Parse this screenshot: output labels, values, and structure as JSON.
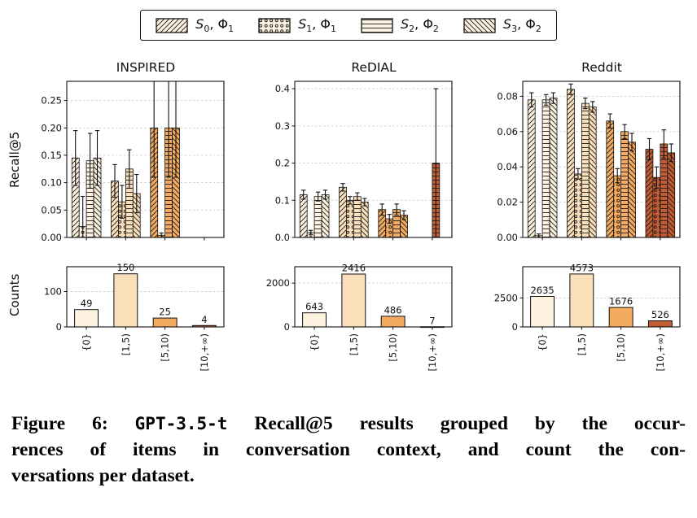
{
  "axis_labels": {
    "recall": "Recall@5",
    "counts": "Counts"
  },
  "legend_patch_color": "#fdf2e0",
  "group_colors": [
    "#fdf2e0",
    "#fbdfba",
    "#f3ab61",
    "#c25c33"
  ],
  "legend": {
    "items": [
      {
        "series": "S",
        "series_sub": "0",
        "phi": "Φ",
        "phi_sub": "1",
        "hatch": "diag"
      },
      {
        "series": "S",
        "series_sub": "1",
        "phi": "Φ",
        "phi_sub": "1",
        "hatch": "circles"
      },
      {
        "series": "S",
        "series_sub": "2",
        "phi": "Φ",
        "phi_sub": "2",
        "hatch": "horiz"
      },
      {
        "series": "S",
        "series_sub": "3",
        "phi": "Φ",
        "phi_sub": "2",
        "hatch": "back"
      }
    ]
  },
  "chart_data": [
    {
      "type": "bar",
      "title": "INSPIRED",
      "groups": [
        "{0}",
        "[1,5)",
        "[5,10)",
        "[10,+∞)"
      ],
      "recall": {
        "ylabel": "Recall@5",
        "ymax": 0.285,
        "ytick_values": [
          0,
          0.05,
          0.1,
          0.15,
          0.2,
          0.25
        ],
        "ytick_labels": [
          "0.00",
          "0.05",
          "0.10",
          "0.15",
          "0.20",
          "0.25"
        ],
        "series": [
          {
            "name": "S0,Φ1",
            "hatch": "diag",
            "values": [
              0.145,
              0.103,
              0.2,
              0
            ],
            "errors": [
              0.05,
              0.03,
              0.09,
              0
            ]
          },
          {
            "name": "S1,Φ1",
            "hatch": "circles",
            "values": [
              0.02,
              0.065,
              0.004,
              0
            ],
            "errors": [
              0.055,
              0.03,
              0.004,
              0
            ]
          },
          {
            "name": "S2,Φ2",
            "hatch": "horiz",
            "values": [
              0.14,
              0.125,
              0.2,
              0
            ],
            "errors": [
              0.05,
              0.035,
              0.09,
              0
            ]
          },
          {
            "name": "S3,Φ2",
            "hatch": "back",
            "values": [
              0.145,
              0.08,
              0.2,
              0
            ],
            "errors": [
              0.05,
              0.035,
              0.09,
              0
            ]
          }
        ]
      },
      "counts": {
        "ylabel": "Counts",
        "values": [
          49,
          150,
          25,
          4
        ],
        "ymax": 170,
        "ytick_values": [
          0,
          100
        ],
        "ytick_labels": [
          "0",
          "100"
        ]
      }
    },
    {
      "type": "bar",
      "title": "ReDIAL",
      "groups": [
        "{0}",
        "[1,5)",
        "[5,10)",
        "[10,+∞)"
      ],
      "recall": {
        "ylabel": "Recall@5",
        "ymax": 0.42,
        "ytick_values": [
          0,
          0.1,
          0.2,
          0.3,
          0.4
        ],
        "ytick_labels": [
          "0.0",
          "0.1",
          "0.2",
          "0.3",
          "0.4"
        ],
        "series": [
          {
            "name": "S0,Φ1",
            "hatch": "diag",
            "values": [
              0.115,
              0.135,
              0.075,
              0
            ],
            "errors": [
              0.012,
              0.01,
              0.015,
              0
            ]
          },
          {
            "name": "S1,Φ1",
            "hatch": "circles",
            "values": [
              0.013,
              0.1,
              0.05,
              0
            ],
            "errors": [
              0.006,
              0.01,
              0.012,
              0
            ]
          },
          {
            "name": "S2,Φ2",
            "hatch": "horiz",
            "values": [
              0.11,
              0.11,
              0.075,
              0.2
            ],
            "errors": [
              0.012,
              0.01,
              0.015,
              0.2
            ]
          },
          {
            "name": "S3,Φ2",
            "hatch": "back",
            "values": [
              0.115,
              0.095,
              0.06,
              0
            ],
            "errors": [
              0.012,
              0.01,
              0.012,
              0
            ]
          }
        ]
      },
      "counts": {
        "ylabel": "Counts",
        "values": [
          643,
          2416,
          486,
          7
        ],
        "ymax": 2750,
        "ytick_values": [
          0,
          2000
        ],
        "ytick_labels": [
          "0",
          "2000"
        ]
      }
    },
    {
      "type": "bar",
      "title": "Reddit",
      "groups": [
        "{0}",
        "[1,5)",
        "[5,10)",
        "[10,+∞)"
      ],
      "recall": {
        "ylabel": "Recall@5",
        "ymax": 0.0885,
        "ytick_values": [
          0,
          0.02,
          0.04,
          0.06,
          0.08
        ],
        "ytick_labels": [
          "0.00",
          "0.02",
          "0.04",
          "0.06",
          "0.08"
        ],
        "series": [
          {
            "name": "S0,Φ1",
            "hatch": "diag",
            "values": [
              0.078,
              0.084,
              0.066,
              0.05
            ],
            "errors": [
              0.004,
              0.003,
              0.004,
              0.006
            ]
          },
          {
            "name": "S1,Φ1",
            "hatch": "circles",
            "values": [
              0.001,
              0.036,
              0.035,
              0.034
            ],
            "errors": [
              0.001,
              0.003,
              0.004,
              0.006
            ]
          },
          {
            "name": "S2,Φ2",
            "hatch": "horiz",
            "values": [
              0.078,
              0.076,
              0.06,
              0.053
            ],
            "errors": [
              0.003,
              0.003,
              0.004,
              0.008
            ]
          },
          {
            "name": "S3,Φ2",
            "hatch": "back",
            "values": [
              0.079,
              0.074,
              0.054,
              0.048
            ],
            "errors": [
              0.003,
              0.003,
              0.005,
              0.005
            ]
          }
        ]
      },
      "counts": {
        "ylabel": "Counts",
        "values": [
          2635,
          4573,
          1676,
          526
        ],
        "ymax": 5200,
        "ytick_values": [
          0,
          2500
        ],
        "ytick_labels": [
          "0",
          "2500"
        ]
      }
    }
  ],
  "figure": {
    "caption": {
      "line1_prefix": "Figure 6: ",
      "line1_code": "GPT-3.5-t",
      "line1_rest": " Recall@5 results grouped by the occur-",
      "line2": "rences of items in conversation context, and count the con-",
      "line3": "versations per dataset."
    }
  }
}
